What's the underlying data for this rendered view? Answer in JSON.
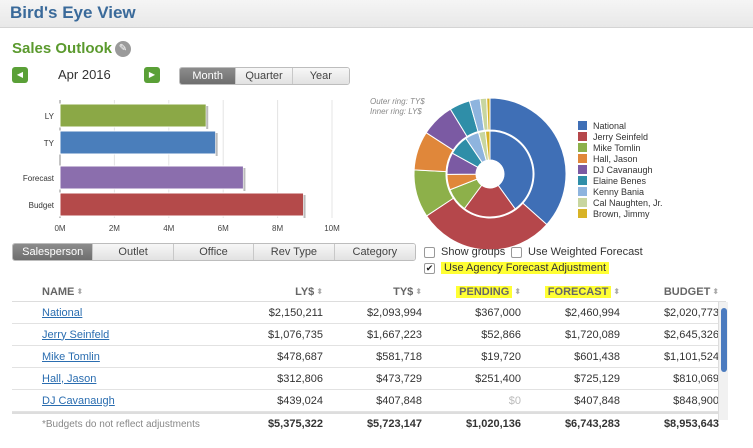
{
  "app": {
    "title": "Bird's Eye View"
  },
  "section": {
    "title": "Sales Outlook"
  },
  "period": {
    "label": "Apr 2016",
    "options": [
      "Month",
      "Quarter",
      "Year"
    ],
    "active": "Month"
  },
  "chart_data": [
    {
      "type": "bar",
      "orientation": "horizontal",
      "categories": [
        "LY",
        "TY",
        "Forecast",
        "Budget"
      ],
      "values": [
        5375322,
        5723147,
        6743283,
        8953643
      ],
      "colors": [
        "#8ba846",
        "#4a7ebb",
        "#8b6ead",
        "#b44a4a"
      ],
      "xlim": [
        0,
        10000000
      ],
      "ticks": [
        "0M",
        "2M",
        "4M",
        "6M",
        "8M",
        "10M"
      ]
    },
    {
      "type": "pie",
      "style": "donut",
      "ring_note": [
        "Outer ring: TY$",
        "Inner ring: LY$"
      ],
      "labels": [
        "National",
        "Jerry Seinfeld",
        "Mike Tomlin",
        "Hall, Jason",
        "DJ Cavanaugh",
        "Elaine Benes",
        "Kenny Bania",
        "Cal Naughten, Jr.",
        "Brown, Jimmy"
      ],
      "colors": [
        "#3f6fb6",
        "#b5474b",
        "#8db04a",
        "#e0873a",
        "#7b5aa3",
        "#2f8ea8",
        "#8eb4de",
        "#c8d6a0",
        "#d8b326"
      ],
      "outer_values": [
        2093994,
        1667223,
        581718,
        473729,
        407848,
        250000,
        130000,
        80000,
        40000
      ],
      "inner_values": [
        2150211,
        1076735,
        478687,
        312806,
        439024,
        400000,
        280000,
        140000,
        90000
      ]
    }
  ],
  "grouping": {
    "options": [
      "Salesperson",
      "Outlet",
      "Office",
      "Rev Type",
      "Category"
    ],
    "active": "Salesperson"
  },
  "checks": {
    "show_groups": {
      "label": "Show groups",
      "checked": false
    },
    "weighted": {
      "label": "Use Weighted Forecast",
      "checked": false
    },
    "agency": {
      "label": "Use Agency Forecast Adjustment",
      "checked": true,
      "check_glyph": "✔"
    }
  },
  "table": {
    "headers": [
      "NAME",
      "LY$",
      "TY$",
      "PENDING",
      "FORECAST",
      "BUDGET"
    ],
    "rows": [
      {
        "name": "National",
        "ly": "$2,150,211",
        "ty": "$2,093,994",
        "pending": "$367,000",
        "forecast": "$2,460,994",
        "budget": "$2,020,773"
      },
      {
        "name": "Jerry Seinfeld",
        "ly": "$1,076,735",
        "ty": "$1,667,223",
        "pending": "$52,866",
        "forecast": "$1,720,089",
        "budget": "$2,645,326"
      },
      {
        "name": "Mike Tomlin",
        "ly": "$478,687",
        "ty": "$581,718",
        "pending": "$19,720",
        "forecast": "$601,438",
        "budget": "$1,101,524"
      },
      {
        "name": "Hall, Jason",
        "ly": "$312,806",
        "ty": "$473,729",
        "pending": "$251,400",
        "forecast": "$725,129",
        "budget": "$810,069"
      },
      {
        "name": "DJ Cavanaugh",
        "ly": "$439,024",
        "ty": "$407,848",
        "pending": "$0",
        "forecast": "$407,848",
        "budget": "$848,900"
      }
    ],
    "footer": {
      "note": "*Budgets do not reflect adjustments",
      "ly": "$5,375,322",
      "ty": "$5,723,147",
      "pending": "$1,020,136",
      "forecast": "$6,743,283",
      "budget": "$8,953,643"
    }
  },
  "icons": {
    "edit": "pencil-icon",
    "prev": "arrow-left-icon",
    "next": "arrow-right-icon",
    "sort": "sort-icon"
  }
}
